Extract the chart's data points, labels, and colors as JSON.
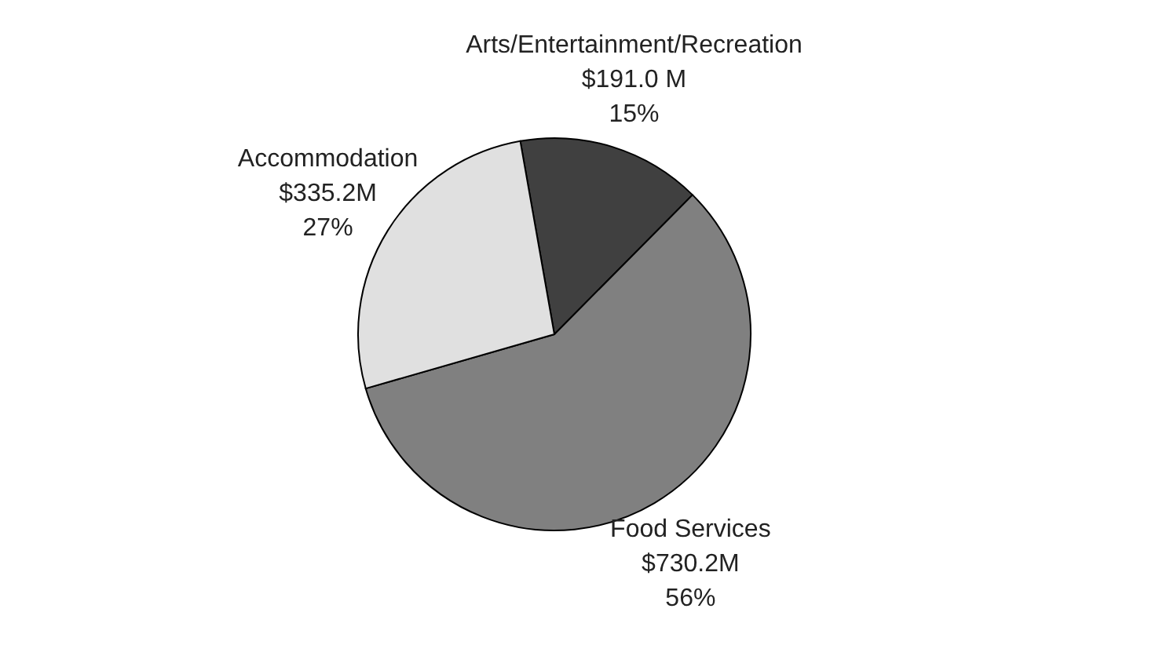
{
  "chart_data": {
    "type": "pie",
    "categories": [
      "Arts/Entertainment/Recreation",
      "Food Services",
      "Accommodation"
    ],
    "values": [
      191.0,
      730.2,
      335.2
    ],
    "value_labels": [
      "$191.0 M",
      "$730.2M",
      "$335.2M"
    ],
    "annotations": [
      "15%",
      "56%",
      "27%"
    ],
    "colors": [
      "#404040",
      "#808080",
      "#e0e0e0"
    ],
    "legend": false
  }
}
